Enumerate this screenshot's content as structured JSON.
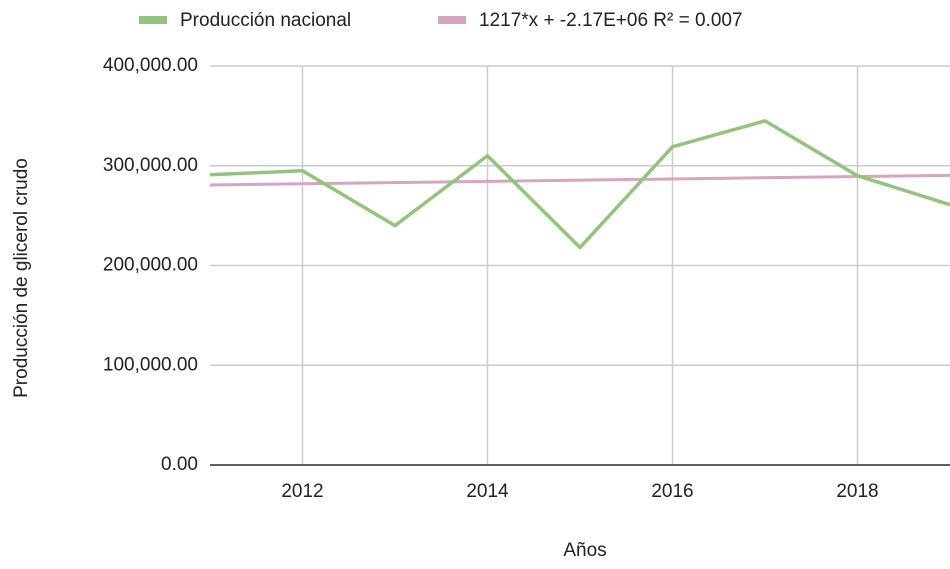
{
  "chart_data": {
    "type": "line",
    "x_label": "Años",
    "y_label": "Producción de glicerol crudo",
    "x": [
      2011,
      2012,
      2013,
      2014,
      2015,
      2016,
      2017,
      2018,
      2019
    ],
    "series": [
      {
        "name": "Producción nacional",
        "color": "#93c47d",
        "values": [
          291000,
          295000,
          240000,
          310000,
          218000,
          319000,
          345000,
          290000,
          261000
        ]
      }
    ],
    "trendline": {
      "name": "1217*x + -2.17E+06 R² = 0.007",
      "color": "#d5a6bd",
      "x": [
        2011,
        2019
      ],
      "values": [
        280700,
        290400
      ]
    },
    "xlim": [
      2011,
      2019
    ],
    "ylim": [
      0,
      400000
    ],
    "xticks": [
      2012,
      2014,
      2016,
      2018
    ],
    "yticks": [
      {
        "value": 0,
        "label": "0.00"
      },
      {
        "value": 100000,
        "label": "100,000.00"
      },
      {
        "value": 200000,
        "label": "200,000.00"
      },
      {
        "value": 300000,
        "label": "300,000.00"
      },
      {
        "value": 400000,
        "label": "400,000.00"
      }
    ],
    "grid": true
  }
}
